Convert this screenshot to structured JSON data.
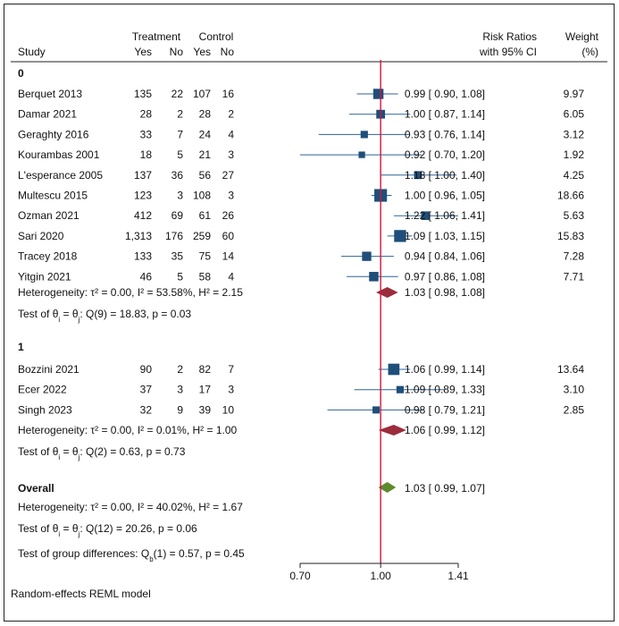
{
  "chart_data": {
    "type": "forest",
    "x_scale": "log",
    "xlim": [
      0.7,
      1.41
    ],
    "x_ticks": [
      0.7,
      1.0,
      1.41
    ],
    "x_tick_labels": [
      "0.70",
      "1.00",
      "1.41"
    ],
    "reference_line": 1.0,
    "headers": {
      "study": "Study",
      "treatment": "Treatment",
      "control": "Control",
      "yes": "Yes",
      "no": "No",
      "effect_line1": "Risk Ratios",
      "effect_line2": "with 95% CI",
      "weight_line1": "Weight",
      "weight_line2": "(%)"
    },
    "groups": [
      {
        "label": "0",
        "studies": [
          {
            "name": "Berquet 2013",
            "t_yes": "135",
            "t_no": "22",
            "c_yes": "107",
            "c_no": "16",
            "rr": 0.99,
            "lo": 0.9,
            "hi": 1.08,
            "ci_text": "0.99 [ 0.90, 1.08]",
            "weight": "9.97"
          },
          {
            "name": "Damar 2021",
            "t_yes": "28",
            "t_no": "2",
            "c_yes": "28",
            "c_no": "2",
            "rr": 1.0,
            "lo": 0.87,
            "hi": 1.14,
            "ci_text": "1.00 [ 0.87, 1.14]",
            "weight": "6.05"
          },
          {
            "name": "Geraghty 2016",
            "t_yes": "33",
            "t_no": "7",
            "c_yes": "24",
            "c_no": "4",
            "rr": 0.93,
            "lo": 0.76,
            "hi": 1.14,
            "ci_text": "0.93 [ 0.76, 1.14]",
            "weight": "3.12"
          },
          {
            "name": "Kourambas 2001",
            "t_yes": "18",
            "t_no": "5",
            "c_yes": "21",
            "c_no": "3",
            "rr": 0.92,
            "lo": 0.7,
            "hi": 1.2,
            "ci_text": "0.92 [ 0.70, 1.20]",
            "weight": "1.92"
          },
          {
            "name": "L'esperance 2005",
            "t_yes": "137",
            "t_no": "36",
            "c_yes": "56",
            "c_no": "27",
            "rr": 1.18,
            "lo": 1.0,
            "hi": 1.4,
            "ci_text": "1.18 [ 1.00, 1.40]",
            "weight": "4.25"
          },
          {
            "name": "Multescu 2015",
            "t_yes": "123",
            "t_no": "3",
            "c_yes": "108",
            "c_no": "3",
            "rr": 1.0,
            "lo": 0.96,
            "hi": 1.05,
            "ci_text": "1.00 [ 0.96, 1.05]",
            "weight": "18.66"
          },
          {
            "name": "Ozman 2021",
            "t_yes": "412",
            "t_no": "69",
            "c_yes": "61",
            "c_no": "26",
            "rr": 1.22,
            "lo": 1.06,
            "hi": 1.41,
            "ci_text": "1.22 [ 1.06, 1.41]",
            "weight": "5.63"
          },
          {
            "name": "Sari 2020",
            "t_yes": "1,313",
            "t_no": "176",
            "c_yes": "259",
            "c_no": "60",
            "rr": 1.09,
            "lo": 1.03,
            "hi": 1.15,
            "ci_text": "1.09 [ 1.03, 1.15]",
            "weight": "15.83"
          },
          {
            "name": "Tracey 2018",
            "t_yes": "133",
            "t_no": "35",
            "c_yes": "75",
            "c_no": "14",
            "rr": 0.94,
            "lo": 0.84,
            "hi": 1.06,
            "ci_text": "0.94 [ 0.84, 1.06]",
            "weight": "7.28"
          },
          {
            "name": "Yitgin 2021",
            "t_yes": "46",
            "t_no": "5",
            "c_yes": "58",
            "c_no": "4",
            "rr": 0.97,
            "lo": 0.86,
            "hi": 1.08,
            "ci_text": "0.97 [ 0.86, 1.08]",
            "weight": "7.71"
          }
        ],
        "heterogeneity": "Heterogeneity: τ² = 0.00, I² = 53.58%, H² = 2.15",
        "summary": {
          "rr": 1.03,
          "lo": 0.98,
          "hi": 1.08,
          "ci_text": "1.03 [ 0.98, 1.08]"
        },
        "test": "Test of θᵢ = θⱼ: Q(9) = 18.83, p = 0.03"
      },
      {
        "label": "1",
        "studies": [
          {
            "name": "Bozzini 2021",
            "t_yes": "90",
            "t_no": "2",
            "c_yes": "82",
            "c_no": "7",
            "rr": 1.06,
            "lo": 0.99,
            "hi": 1.14,
            "ci_text": "1.06 [ 0.99, 1.14]",
            "weight": "13.64"
          },
          {
            "name": "Ecer 2022",
            "t_yes": "37",
            "t_no": "3",
            "c_yes": "17",
            "c_no": "3",
            "rr": 1.09,
            "lo": 0.89,
            "hi": 1.33,
            "ci_text": "1.09 [ 0.89, 1.33]",
            "weight": "3.10"
          },
          {
            "name": "Singh 2023",
            "t_yes": "32",
            "t_no": "9",
            "c_yes": "39",
            "c_no": "10",
            "rr": 0.98,
            "lo": 0.79,
            "hi": 1.21,
            "ci_text": "0.98 [ 0.79, 1.21]",
            "weight": "2.85"
          }
        ],
        "heterogeneity": "Heterogeneity: τ² = 0.00, I² = 0.01%, H² = 1.00",
        "summary": {
          "rr": 1.06,
          "lo": 0.99,
          "hi": 1.12,
          "ci_text": "1.06 [ 0.99, 1.12]"
        },
        "test": "Test of θᵢ = θⱼ: Q(2) = 0.63, p = 0.73"
      }
    ],
    "overall": {
      "label": "Overall",
      "rr": 1.03,
      "lo": 0.99,
      "hi": 1.07,
      "ci_text": "1.03 [ 0.99, 1.07]",
      "heterogeneity": "Heterogeneity: τ² = 0.00, I² = 40.02%, H² = 1.67",
      "test": "Test of θᵢ = θⱼ: Q(12) = 20.26, p = 0.06",
      "group_test": "Test of group differences: Q_b(1) = 0.57, p = 0.45"
    },
    "colors": {
      "marker": "#1f4e79",
      "ci_line": "#2e6399",
      "subgroup_diamond": "#9b2c3c",
      "overall_diamond": "#5e8a2e",
      "reference_line": "#d2143a"
    }
  },
  "footer": "Random-effects REML model"
}
